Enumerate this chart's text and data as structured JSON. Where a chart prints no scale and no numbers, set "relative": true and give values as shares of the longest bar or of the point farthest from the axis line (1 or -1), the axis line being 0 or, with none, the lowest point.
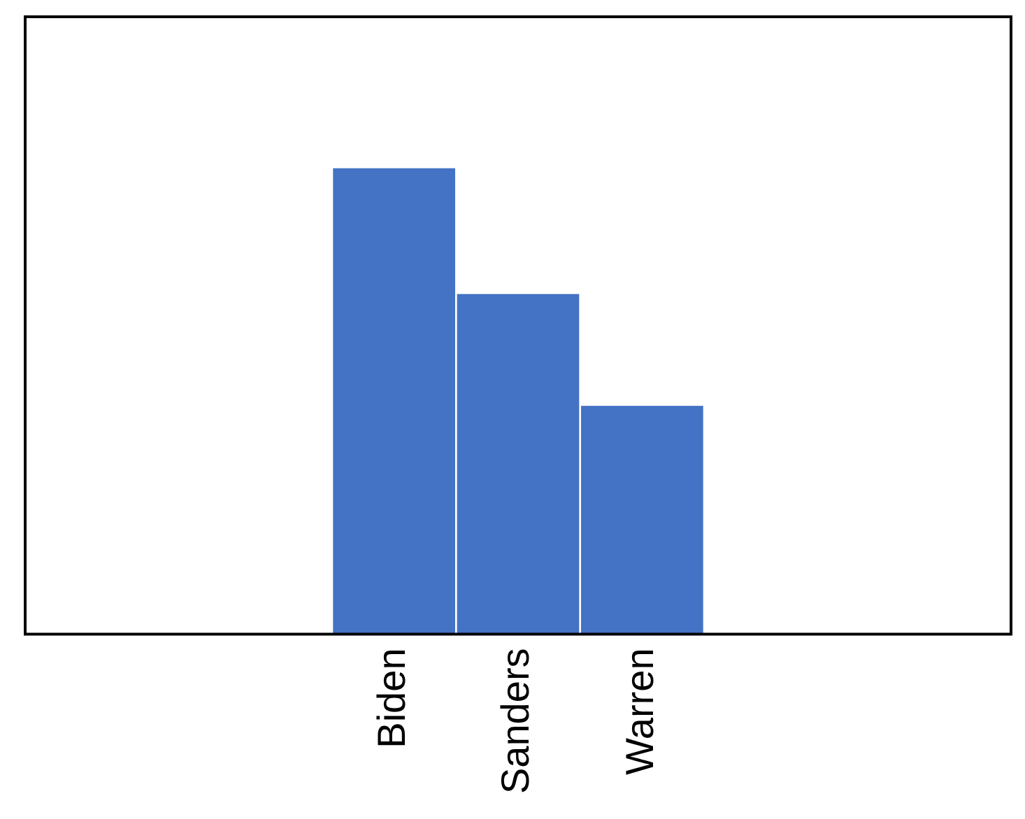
{
  "chart_data": {
    "type": "bar",
    "categories": [
      "Biden",
      "Sanders",
      "Warren"
    ],
    "values": [
      1,
      0.73,
      0.49
    ],
    "color": "#4472c4",
    "relative": true,
    "grid": false,
    "legend": false
  }
}
